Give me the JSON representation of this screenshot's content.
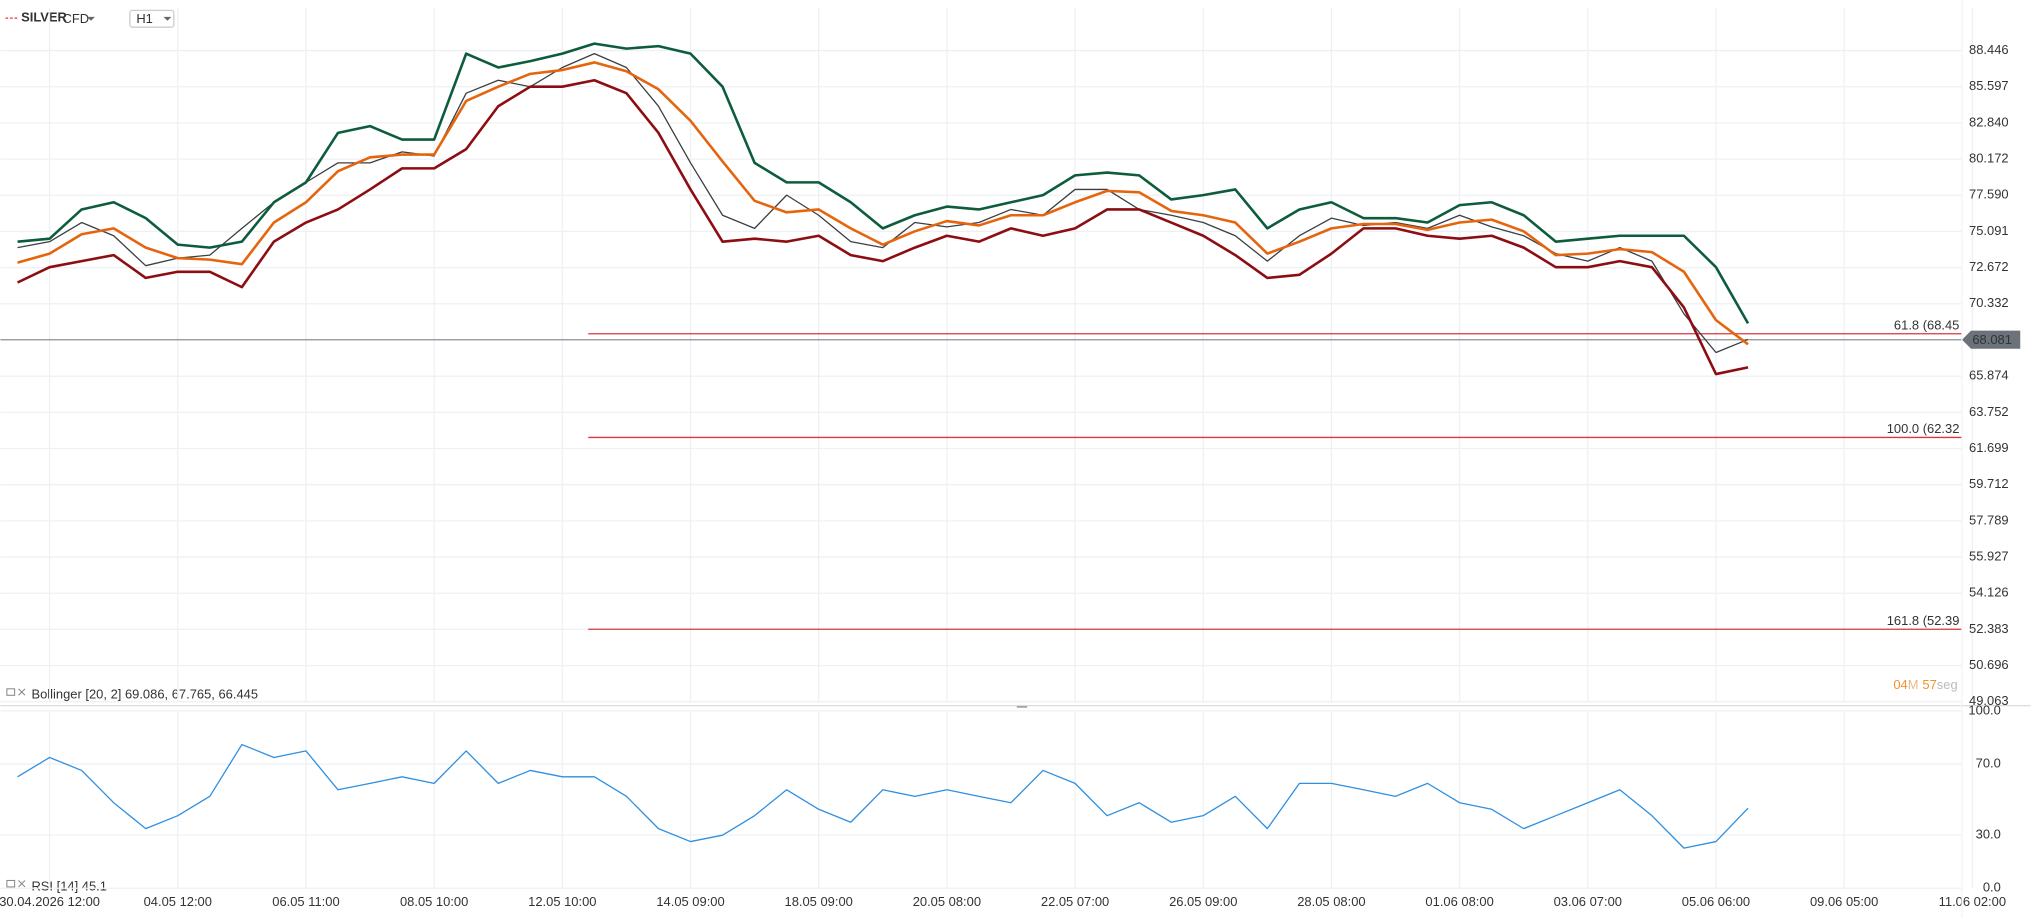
{
  "header": {
    "symbol": "SILVER",
    "symbol_tag": "CFD",
    "timeframe": "H1"
  },
  "timer": {
    "minutes": "04",
    "minutes_unit": "M",
    "seconds": "57",
    "seconds_unit": "seg"
  },
  "chart_data": {
    "type": "line",
    "log": true,
    "grid": true,
    "categories": [
      null,
      "30.04.2026 12:00",
      null,
      null,
      null,
      "04.05 12:00",
      null,
      null,
      null,
      "06.05 11:00",
      null,
      null,
      null,
      "08.05 10:00",
      null,
      null,
      null,
      "12.05 10:00",
      null,
      null,
      null,
      "14.05 09:00",
      null,
      null,
      null,
      "18.05 09:00",
      null,
      null,
      null,
      "20.05 08:00",
      null,
      null,
      null,
      "22.05 07:00",
      null,
      null,
      null,
      "26.05 09:00",
      null,
      null,
      null,
      "28.05 08:00",
      null,
      null,
      null,
      "01.06 08:00",
      null,
      null,
      null,
      "03.06 07:00",
      null,
      null,
      null,
      "05.06 06:00",
      null,
      null,
      null,
      "09.06 05:00",
      null,
      null,
      null,
      "11.06 02:00"
    ],
    "series": [
      {
        "color": "#3a3f44",
        "values": [
          74.0,
          74.4,
          75.7,
          74.8,
          72.8,
          73.3,
          73.5,
          75.3,
          77.1,
          78.5,
          79.9,
          79.9,
          80.7,
          80.4,
          85.1,
          86.1,
          85.6,
          87.1,
          88.2,
          87.1,
          84.1,
          79.9,
          76.2,
          75.3,
          77.6,
          76.2,
          74.4,
          74.0,
          75.7,
          75.4,
          75.7,
          76.6,
          76.2,
          78.0,
          78.0,
          76.6,
          76.2,
          75.7,
          74.8,
          73.1,
          74.8,
          76.0,
          75.5,
          75.7,
          75.3,
          76.2,
          75.4,
          74.8,
          73.6,
          73.1,
          74.0,
          73.1,
          69.7,
          67.3,
          68.1,
          null,
          null,
          null,
          null,
          null,
          null,
          null
        ]
      },
      {
        "color": "#0d5c3b",
        "values": [
          74.4,
          74.6,
          76.6,
          77.1,
          76.0,
          74.2,
          74.0,
          74.4,
          77.1,
          78.5,
          82.1,
          82.6,
          81.6,
          81.6,
          88.2,
          87.1,
          87.6,
          88.2,
          89.0,
          88.6,
          88.8,
          88.2,
          85.6,
          79.9,
          78.5,
          78.5,
          77.1,
          75.3,
          76.2,
          76.8,
          76.6,
          77.1,
          77.6,
          79.0,
          79.2,
          79.0,
          77.3,
          77.6,
          78.0,
          75.3,
          76.6,
          77.1,
          76.0,
          76.0,
          75.7,
          76.9,
          77.1,
          76.2,
          74.4,
          74.6,
          74.8,
          74.8,
          74.8,
          72.7,
          69.1,
          null,
          null,
          null,
          null,
          null,
          null,
          null
        ]
      },
      {
        "color": "#e5650f",
        "values": [
          73.0,
          73.6,
          74.9,
          75.3,
          74.0,
          73.3,
          73.2,
          72.9,
          75.7,
          77.1,
          79.3,
          80.3,
          80.5,
          80.5,
          84.5,
          85.6,
          86.6,
          86.9,
          87.5,
          86.8,
          85.4,
          83.0,
          80.0,
          77.2,
          76.4,
          76.6,
          75.3,
          74.2,
          75.1,
          75.8,
          75.5,
          76.2,
          76.2,
          77.1,
          77.9,
          77.8,
          76.5,
          76.2,
          75.7,
          73.6,
          74.4,
          75.3,
          75.6,
          75.6,
          75.2,
          75.7,
          75.9,
          75.1,
          73.5,
          73.6,
          73.9,
          73.7,
          72.4,
          69.3,
          67.8,
          null,
          null,
          null,
          null,
          null,
          null,
          null
        ]
      },
      {
        "color": "#8c0d12",
        "values": [
          71.7,
          72.7,
          73.1,
          73.5,
          72.0,
          72.4,
          72.4,
          71.4,
          74.4,
          75.7,
          76.6,
          78.0,
          79.5,
          79.5,
          80.9,
          84.1,
          85.6,
          85.6,
          86.1,
          85.1,
          82.1,
          78.0,
          74.4,
          74.6,
          74.4,
          74.8,
          73.5,
          73.1,
          74.0,
          74.8,
          74.4,
          75.3,
          74.8,
          75.3,
          76.6,
          76.6,
          75.7,
          74.8,
          73.5,
          72.0,
          72.2,
          73.6,
          75.3,
          75.3,
          74.8,
          74.6,
          74.8,
          74.0,
          72.7,
          72.7,
          73.1,
          72.7,
          70.1,
          66.0,
          66.4,
          null,
          null,
          null,
          null,
          null,
          null,
          null
        ]
      },
      {
        "color": "#2f8fe0",
        "axis": "y2",
        "values": [
          62.8,
          73.7,
          66.4,
          48.2,
          33.6,
          40.9,
          51.8,
          81.0,
          73.7,
          77.4,
          55.5,
          59.1,
          62.8,
          59.1,
          77.4,
          59.1,
          66.4,
          62.8,
          62.8,
          51.8,
          33.6,
          26.3,
          29.9,
          40.9,
          55.5,
          44.5,
          37.2,
          55.5,
          51.8,
          55.5,
          51.8,
          48.2,
          66.4,
          59.1,
          40.9,
          48.2,
          37.2,
          40.9,
          51.8,
          33.6,
          59.1,
          59.1,
          55.5,
          51.8,
          59.1,
          48.2,
          44.5,
          33.6,
          40.9,
          48.2,
          55.5,
          40.9,
          22.6,
          26.3,
          45.1,
          null,
          null,
          null,
          null,
          null,
          null,
          null
        ]
      }
    ],
    "ylim": [
      49.063,
      91.4
    ],
    "yticks": [
      88.446,
      85.597,
      {
        "value": 82.84,
        "label": "82.840"
      },
      80.172,
      {
        "value": 77.59,
        "label": "77.590"
      },
      75.091,
      72.672,
      70.332,
      65.874,
      63.752,
      61.699,
      59.712,
      57.789,
      55.927,
      54.126,
      52.383,
      50.696,
      49.063
    ],
    "y2lim": [
      0,
      100
    ],
    "y2ticks": [
      {
        "value": 0,
        "label": "0.0"
      },
      {
        "value": 30,
        "label": "30.0"
      },
      {
        "value": 70,
        "label": "70.0"
      },
      {
        "value": 100,
        "label": "100.0"
      }
    ],
    "last_price": 68.081,
    "levels": [
      {
        "value": 68.45,
        "label": "61.8 (68.45"
      },
      {
        "value": 62.32,
        "label": "100.0 (62.32"
      },
      {
        "value": 52.39,
        "label": "161.8 (52.39"
      }
    ],
    "bollinger_label": "Bollinger [20, 2] 69.086, 67.765, 66.445",
    "rsi_label": "RSI [14] 45.1"
  }
}
